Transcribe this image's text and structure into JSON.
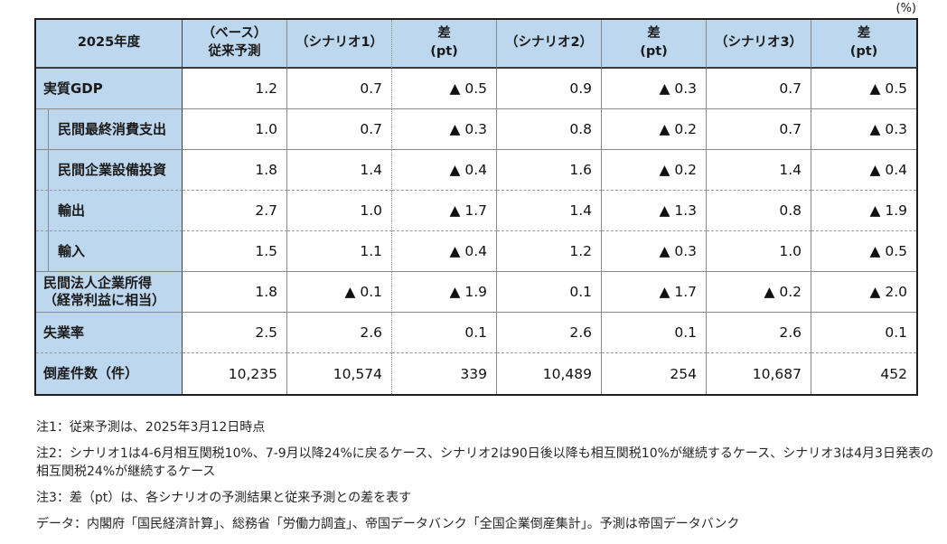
{
  "unit_label": "(%)",
  "table": {
    "columns": [
      "2025年度",
      "（ベース）\n従来予測",
      "（シナリオ1）",
      "差\n(pt)",
      "（シナリオ2）",
      "差\n(pt)",
      "（シナリオ3）",
      "差\n(pt)"
    ],
    "rows": [
      {
        "label": "実質GDP",
        "indent": false,
        "values": [
          "1.2",
          "0.7",
          "▲ 0.5",
          "0.9",
          "▲ 0.3",
          "0.7",
          "▲ 0.5"
        ]
      },
      {
        "label": "民間最終消費支出",
        "indent": true,
        "values": [
          "1.0",
          "0.7",
          "▲ 0.3",
          "0.8",
          "▲ 0.2",
          "0.7",
          "▲ 0.3"
        ]
      },
      {
        "label": "民間企業設備投資",
        "indent": true,
        "values": [
          "1.8",
          "1.4",
          "▲ 0.4",
          "1.6",
          "▲ 0.2",
          "1.4",
          "▲ 0.4"
        ]
      },
      {
        "label": "輸出",
        "indent": true,
        "values": [
          "2.7",
          "1.0",
          "▲ 1.7",
          "1.4",
          "▲ 1.3",
          "0.8",
          "▲ 1.9"
        ]
      },
      {
        "label": "輸入",
        "indent": true,
        "values": [
          "1.5",
          "1.1",
          "▲ 0.4",
          "1.2",
          "▲ 0.3",
          "1.0",
          "▲ 0.5"
        ]
      },
      {
        "label": "民間法人企業所得\n（経常利益に相当）",
        "indent": false,
        "values": [
          "1.8",
          "▲ 0.1",
          "▲ 1.9",
          "0.1",
          "▲ 1.7",
          "▲ 0.2",
          "▲ 2.0"
        ]
      },
      {
        "label": "失業率",
        "indent": false,
        "values": [
          "2.5",
          "2.6",
          "0.1",
          "2.6",
          "0.1",
          "2.6",
          "0.1"
        ]
      },
      {
        "label": "倒産件数（件）",
        "indent": false,
        "values": [
          "10,235",
          "10,574",
          "339",
          "10,489",
          "254",
          "10,687",
          "452"
        ]
      }
    ]
  },
  "notes": [
    "注1：従来予測は、2025年3月12日時点",
    "注2：シナリオ1は4-6月相互関税10%、7-9月以降24%に戻るケース、シナリオ2は90日後以降も相互関税10%が継続するケース、シナリオ3は4月3日発表の相互関税24%が継続するケース",
    "注3：差（pt）は、各シナリオの予測結果と従来予測との差を表す",
    "データ：内閣府「国民経済計算」、総務省「労働力調査」、帝国データバンク「全国企業倒産集計」。予測は帝国データバンク"
  ]
}
